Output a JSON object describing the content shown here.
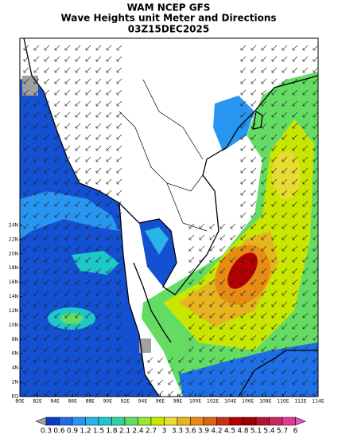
{
  "title": [
    "WAM NCEP GFS",
    "Wave Heights unit Meter and Directions",
    "03Z15DEC2025"
  ],
  "lat_labels": [
    "EQ",
    "2N",
    "4N",
    "6N",
    "8N",
    "10N",
    "12N",
    "14N",
    "16N",
    "18N",
    "20N",
    "22N",
    "24N"
  ],
  "lon_labels": [
    "80E",
    "82E",
    "84E",
    "86E",
    "88E",
    "90E",
    "92E",
    "94E",
    "96E",
    "98E",
    "100E",
    "102E",
    "104E",
    "106E",
    "108E",
    "110E",
    "112E",
    "114E"
  ],
  "colorbar": {
    "levels": [
      0.3,
      0.6,
      0.9,
      1.2,
      1.5,
      1.8,
      2.1,
      2.4,
      2.7,
      3,
      3.3,
      3.6,
      3.9,
      4.2,
      4.5,
      4.8,
      5.1,
      5.4,
      5.7,
      6
    ],
    "colors": [
      "#a0a0a0",
      "#0a3cc8",
      "#1e6ee6",
      "#2896f0",
      "#28b4e6",
      "#1ec8c8",
      "#32d2a0",
      "#64dc64",
      "#96e632",
      "#c8e600",
      "#e6dc32",
      "#e6b41e",
      "#e68c14",
      "#dc6414",
      "#c83214",
      "#b40000",
      "#a00000",
      "#b4142d",
      "#c8285a",
      "#dc3c96",
      "#e650c8"
    ]
  }
}
